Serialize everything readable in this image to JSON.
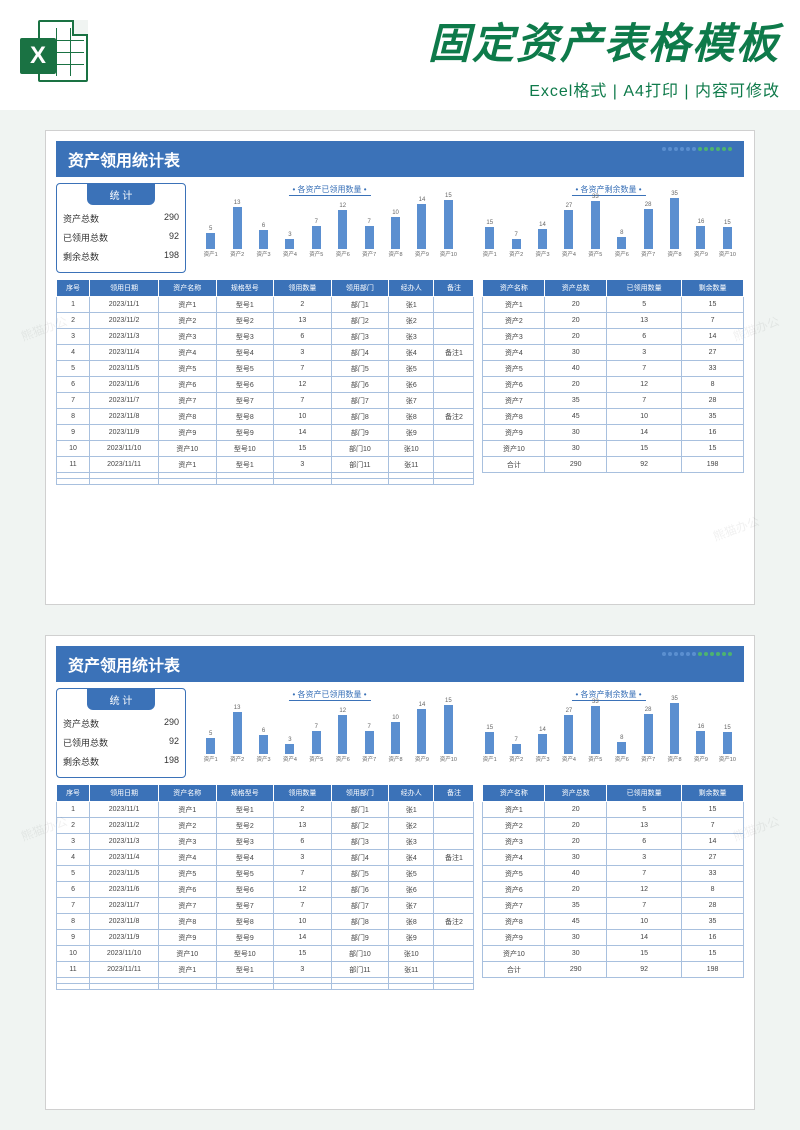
{
  "header": {
    "title": "固定资产表格模板",
    "subtitle": "Excel格式 | A4打印 | 内容可修改",
    "excel_x": "X"
  },
  "sheet": {
    "title": "资产领用统计表",
    "accent_color": "#3b72b8",
    "dot_colors": [
      "#5b8fd0",
      "#5b8fd0",
      "#5b8fd0",
      "#5b8fd0",
      "#5b8fd0",
      "#5b8fd0",
      "#4db371",
      "#4db371",
      "#4db371",
      "#4db371",
      "#4db371",
      "#4db371"
    ],
    "stats": {
      "tab": "统 计",
      "rows": [
        {
          "label": "资产总数",
          "value": "290"
        },
        {
          "label": "已领用总数",
          "value": "92"
        },
        {
          "label": "剩余总数",
          "value": "198"
        }
      ]
    },
    "chart1": {
      "title": "各资产已领用数量",
      "type": "bar",
      "bar_color": "#5b8fd0",
      "title_fontsize": 8,
      "label_fontsize": 6,
      "ylim": [
        0,
        16
      ],
      "categories": [
        "资产1",
        "资产2",
        "资产3",
        "资产4",
        "资产5",
        "资产6",
        "资产7",
        "资产8",
        "资产9",
        "资产10"
      ],
      "values": [
        5,
        13,
        6,
        3,
        7,
        12,
        7,
        10,
        14,
        15
      ]
    },
    "chart2": {
      "title": "各资产剩余数量",
      "type": "bar",
      "bar_color": "#5b8fd0",
      "title_fontsize": 8,
      "label_fontsize": 6,
      "ylim": [
        0,
        36
      ],
      "categories": [
        "资产1",
        "资产2",
        "资产3",
        "资产4",
        "资产5",
        "资产6",
        "资产7",
        "资产8",
        "资产9",
        "资产10"
      ],
      "values": [
        15,
        7,
        14,
        27,
        33,
        8,
        28,
        35,
        16,
        15
      ]
    },
    "left_table": {
      "columns": [
        "序号",
        "领用日期",
        "资产名称",
        "规格型号",
        "领用数量",
        "领用部门",
        "经办人",
        "备注"
      ],
      "rows": [
        [
          "1",
          "2023/11/1",
          "资产1",
          "型号1",
          "2",
          "部门1",
          "张1",
          ""
        ],
        [
          "2",
          "2023/11/2",
          "资产2",
          "型号2",
          "13",
          "部门2",
          "张2",
          ""
        ],
        [
          "3",
          "2023/11/3",
          "资产3",
          "型号3",
          "6",
          "部门3",
          "张3",
          ""
        ],
        [
          "4",
          "2023/11/4",
          "资产4",
          "型号4",
          "3",
          "部门4",
          "张4",
          "备注1"
        ],
        [
          "5",
          "2023/11/5",
          "资产5",
          "型号5",
          "7",
          "部门5",
          "张5",
          ""
        ],
        [
          "6",
          "2023/11/6",
          "资产6",
          "型号6",
          "12",
          "部门6",
          "张6",
          ""
        ],
        [
          "7",
          "2023/11/7",
          "资产7",
          "型号7",
          "7",
          "部门7",
          "张7",
          ""
        ],
        [
          "8",
          "2023/11/8",
          "资产8",
          "型号8",
          "10",
          "部门8",
          "张8",
          "备注2"
        ],
        [
          "9",
          "2023/11/9",
          "资产9",
          "型号9",
          "14",
          "部门9",
          "张9",
          ""
        ],
        [
          "10",
          "2023/11/10",
          "资产10",
          "型号10",
          "15",
          "部门10",
          "张10",
          ""
        ],
        [
          "11",
          "2023/11/11",
          "资产1",
          "型号1",
          "3",
          "部门11",
          "张11",
          ""
        ],
        [
          "",
          "",
          "",
          "",
          "",
          "",
          "",
          ""
        ],
        [
          "",
          "",
          "",
          "",
          "",
          "",
          "",
          ""
        ]
      ]
    },
    "right_table": {
      "columns": [
        "资产名称",
        "资产总数",
        "已领用数量",
        "剩余数量"
      ],
      "rows": [
        [
          "资产1",
          "20",
          "5",
          "15"
        ],
        [
          "资产2",
          "20",
          "13",
          "7"
        ],
        [
          "资产3",
          "20",
          "6",
          "14"
        ],
        [
          "资产4",
          "30",
          "3",
          "27"
        ],
        [
          "资产5",
          "40",
          "7",
          "33"
        ],
        [
          "资产6",
          "20",
          "12",
          "8"
        ],
        [
          "资产7",
          "35",
          "7",
          "28"
        ],
        [
          "资产8",
          "45",
          "10",
          "35"
        ],
        [
          "资产9",
          "30",
          "14",
          "16"
        ],
        [
          "资产10",
          "30",
          "15",
          "15"
        ],
        [
          "合计",
          "290",
          "92",
          "198"
        ]
      ]
    }
  },
  "watermark": "熊猫办公"
}
